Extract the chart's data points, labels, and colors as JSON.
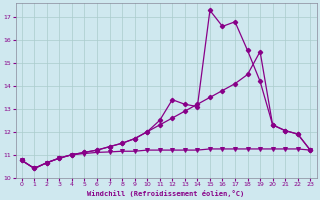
{
  "background_color": "#cfe8ef",
  "grid_color": "#aacccc",
  "line_color": "#880088",
  "x_label": "Windchill (Refroidissement éolien,°C)",
  "xlim": [
    -0.5,
    23.5
  ],
  "ylim": [
    10.0,
    17.6
  ],
  "yticks": [
    10,
    11,
    12,
    13,
    14,
    15,
    16,
    17
  ],
  "xticks": [
    0,
    1,
    2,
    3,
    4,
    5,
    6,
    7,
    8,
    9,
    10,
    11,
    12,
    13,
    14,
    15,
    16,
    17,
    18,
    19,
    20,
    21,
    22,
    23
  ],
  "line_flat_x": [
    0,
    1,
    2,
    3,
    4,
    5,
    6,
    7,
    8,
    9,
    10,
    11,
    12,
    13,
    14,
    15,
    16,
    17,
    18,
    19,
    20,
    21,
    22,
    23
  ],
  "line_flat_y": [
    10.75,
    10.4,
    10.65,
    10.85,
    11.0,
    11.05,
    11.1,
    11.12,
    11.15,
    11.15,
    11.2,
    11.2,
    11.2,
    11.2,
    11.2,
    11.25,
    11.25,
    11.25,
    11.25,
    11.25,
    11.25,
    11.25,
    11.25,
    11.2
  ],
  "line_diag_x": [
    0,
    1,
    2,
    3,
    4,
    5,
    6,
    7,
    8,
    9,
    10,
    11,
    12,
    13,
    14,
    15,
    16,
    17,
    18,
    19,
    20,
    21,
    22,
    23
  ],
  "line_diag_y": [
    10.75,
    10.4,
    10.65,
    10.85,
    11.0,
    11.1,
    11.2,
    11.35,
    11.5,
    11.7,
    12.0,
    12.3,
    12.6,
    12.9,
    13.2,
    13.5,
    13.8,
    14.1,
    14.5,
    15.5,
    12.3,
    12.05,
    11.9,
    11.2
  ],
  "line_peak_x": [
    0,
    1,
    2,
    3,
    4,
    5,
    6,
    7,
    8,
    9,
    10,
    11,
    12,
    13,
    14,
    15,
    16,
    17,
    18,
    19,
    20,
    21,
    22,
    23
  ],
  "line_peak_y": [
    10.75,
    10.4,
    10.65,
    10.85,
    11.0,
    11.1,
    11.2,
    11.35,
    11.5,
    11.7,
    12.0,
    12.5,
    13.4,
    13.2,
    13.1,
    17.3,
    16.6,
    16.8,
    15.55,
    14.2,
    12.3,
    12.05,
    11.9,
    11.2
  ]
}
